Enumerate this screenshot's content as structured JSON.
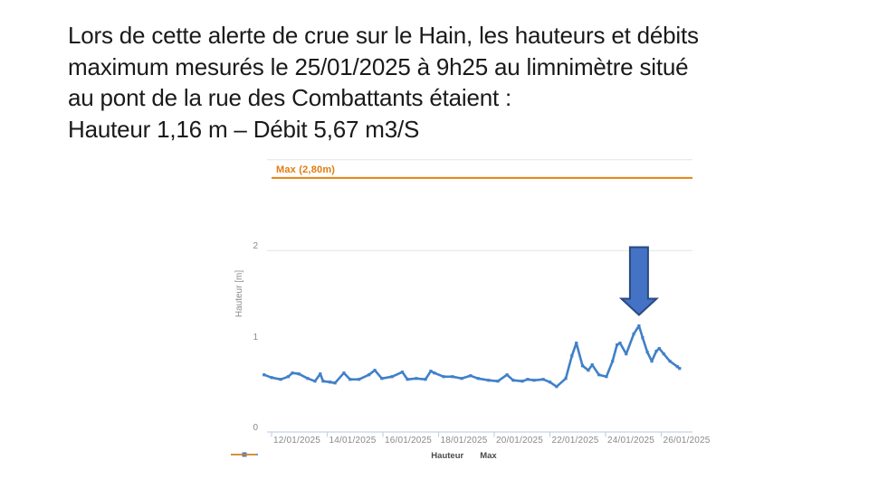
{
  "slide": {
    "lines": [
      "Lors de cette alerte de crue sur le Hain, les hauteurs et débits",
      "maximum mesurés le 25/01/2025 à 9h25 au limnimètre situé",
      "au pont de la rue des Combattants étaient :",
      "Hauteur 1,16 m – Débit 5,67 m3/S"
    ]
  },
  "chart_data": {
    "type": "line",
    "title": "",
    "xlabel": "",
    "ylabel": "Hauteur [m]",
    "ylim": [
      0,
      3
    ],
    "grid_values": [
      2,
      3
    ],
    "yticks": [
      0,
      1,
      2
    ],
    "x_tick_positions": [
      12,
      14,
      16,
      18,
      20,
      22,
      24,
      26
    ],
    "x_tick_labels": [
      "12/01/2025",
      "14/01/2025",
      "16/01/2025",
      "18/01/2025",
      "20/01/2025",
      "22/01/2025",
      "24/01/2025",
      "26/01/2025"
    ],
    "legend": [
      "Hauteur",
      "Max"
    ],
    "legend_position": "bottom-center",
    "grid": "horizontal-partial",
    "max_line": {
      "value": 2.8,
      "label": "Max (2,80m)",
      "color": "#e5820f"
    },
    "series": [
      {
        "name": "Hauteur",
        "color": "#4080c8",
        "points": [
          [
            11.73,
            0.63
          ],
          [
            12.0,
            0.6
          ],
          [
            12.33,
            0.58
          ],
          [
            12.6,
            0.61
          ],
          [
            12.75,
            0.65
          ],
          [
            12.98,
            0.64
          ],
          [
            13.3,
            0.59
          ],
          [
            13.56,
            0.56
          ],
          [
            13.75,
            0.64
          ],
          [
            13.85,
            0.56
          ],
          [
            14.1,
            0.55
          ],
          [
            14.28,
            0.54
          ],
          [
            14.6,
            0.65
          ],
          [
            14.82,
            0.58
          ],
          [
            15.14,
            0.58
          ],
          [
            15.5,
            0.63
          ],
          [
            15.71,
            0.68
          ],
          [
            15.96,
            0.59
          ],
          [
            16.33,
            0.61
          ],
          [
            16.7,
            0.66
          ],
          [
            16.88,
            0.58
          ],
          [
            17.2,
            0.59
          ],
          [
            17.53,
            0.58
          ],
          [
            17.72,
            0.67
          ],
          [
            17.85,
            0.65
          ],
          [
            18.18,
            0.61
          ],
          [
            18.5,
            0.61
          ],
          [
            18.83,
            0.59
          ],
          [
            19.15,
            0.62
          ],
          [
            19.42,
            0.59
          ],
          [
            19.8,
            0.57
          ],
          [
            20.13,
            0.56
          ],
          [
            20.46,
            0.63
          ],
          [
            20.68,
            0.57
          ],
          [
            21.01,
            0.56
          ],
          [
            21.2,
            0.58
          ],
          [
            21.43,
            0.57
          ],
          [
            21.76,
            0.58
          ],
          [
            22.0,
            0.55
          ],
          [
            22.24,
            0.5
          ],
          [
            22.57,
            0.59
          ],
          [
            22.79,
            0.84
          ],
          [
            22.95,
            0.98
          ],
          [
            23.17,
            0.73
          ],
          [
            23.38,
            0.68
          ],
          [
            23.52,
            0.74
          ],
          [
            23.76,
            0.63
          ],
          [
            24.03,
            0.61
          ],
          [
            24.25,
            0.78
          ],
          [
            24.41,
            0.96
          ],
          [
            24.52,
            0.98
          ],
          [
            24.74,
            0.86
          ],
          [
            25.01,
            1.08
          ],
          [
            25.2,
            1.17
          ],
          [
            25.33,
            1.04
          ],
          [
            25.5,
            0.88
          ],
          [
            25.66,
            0.78
          ],
          [
            25.82,
            0.89
          ],
          [
            25.93,
            0.92
          ],
          [
            26.09,
            0.86
          ],
          [
            26.31,
            0.78
          ],
          [
            26.58,
            0.72
          ],
          [
            26.66,
            0.7
          ]
        ]
      }
    ],
    "annotation": {
      "shape": "down-arrow",
      "day": 25.2,
      "value": 1.17,
      "fill": "#4472C4",
      "stroke": "#2a4a80"
    }
  }
}
